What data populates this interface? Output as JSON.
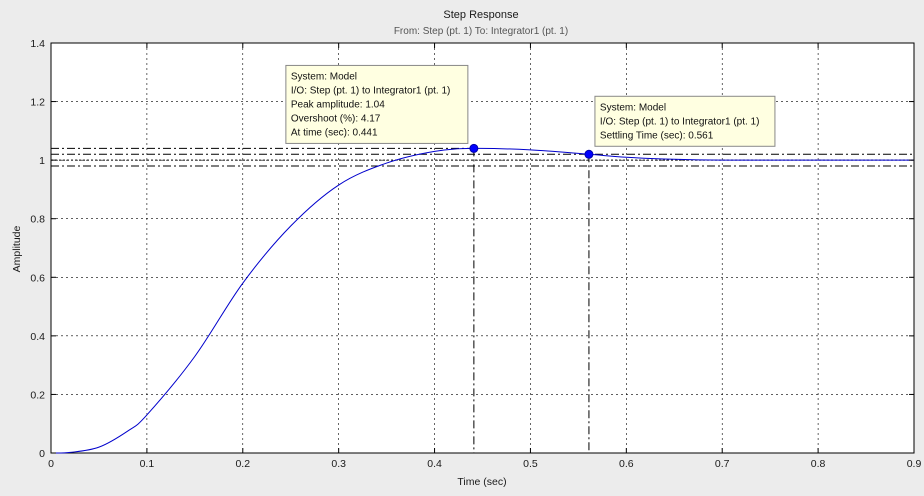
{
  "chart_data": {
    "type": "line",
    "title": "Step Response",
    "subtitle": "From: Step (pt. 1)  To: Integrator1 (pt. 1)",
    "xlabel": "Time (sec)",
    "ylabel": "Amplitude",
    "xlim": [
      0,
      0.9
    ],
    "ylim": [
      0,
      1.4
    ],
    "xticks": [
      "0",
      "0.1",
      "0.2",
      "0.3",
      "0.4",
      "0.5",
      "0.6",
      "0.7",
      "0.8",
      "0.9"
    ],
    "yticks": [
      "0",
      "0.2",
      "0.4",
      "0.6",
      "0.8",
      "1",
      "1.2",
      "1.4"
    ],
    "grid": true,
    "series": [
      {
        "color": "#0000cc",
        "x": [
          0,
          0.02,
          0.05,
          0.08,
          0.1,
          0.15,
          0.2,
          0.25,
          0.3,
          0.35,
          0.4,
          0.441,
          0.5,
          0.561,
          0.6,
          0.65,
          0.7,
          0.8,
          0.9
        ],
        "y": [
          0,
          0.002,
          0.02,
          0.075,
          0.13,
          0.33,
          0.58,
          0.775,
          0.915,
          0.99,
          1.03,
          1.04,
          1.035,
          1.02,
          1.01,
          1.003,
          1.0,
          1.0,
          1.0
        ]
      }
    ],
    "reference_lines": {
      "peak_amplitude": 1.04,
      "peak_time": 0.441,
      "settling_time": 0.561,
      "settling_band": [
        0.98,
        1.02
      ],
      "final_value": 1.0
    },
    "annotations": [
      {
        "marker_x": 0.441,
        "marker_y": 1.04,
        "lines": [
          "System: Model",
          "I/O: Step (pt. 1) to Integrator1 (pt. 1)",
          "Peak amplitude: 1.04",
          "Overshoot (%): 4.17",
          "At time (sec): 0.441"
        ]
      },
      {
        "marker_x": 0.561,
        "marker_y": 1.02,
        "lines": [
          "System: Model",
          "I/O: Step (pt. 1) to Integrator1 (pt. 1)",
          "Settling Time (sec): 0.561"
        ]
      }
    ],
    "colors": {
      "figure_background": "#ececec",
      "axes_background": "#ffffff",
      "line": "#0000cc",
      "marker": "#0000ff",
      "tooltip_background": "#ffffe1"
    }
  }
}
